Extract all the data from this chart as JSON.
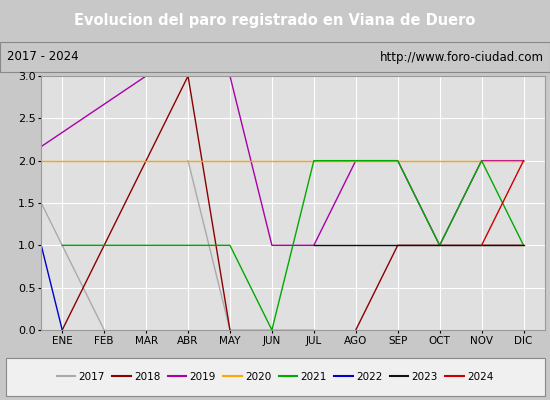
{
  "title": "Evolucion del paro registrado en Viana de Duero",
  "subtitle_left": "2017 - 2024",
  "subtitle_right": "http://www.foro-ciudad.com",
  "xlabel_months": [
    "ENE",
    "FEB",
    "MAR",
    "ABR",
    "MAY",
    "JUN",
    "JUL",
    "AGO",
    "SEP",
    "OCT",
    "NOV",
    "DIC"
  ],
  "ylim": [
    0.0,
    3.0
  ],
  "yticks": [
    0.0,
    0.5,
    1.0,
    1.5,
    2.0,
    2.5,
    3.0
  ],
  "series": {
    "2017": {
      "color": "#aaaaaa",
      "segments": [
        [
          [
            0,
            1,
            2
          ],
          [
            2,
            1,
            0
          ]
        ],
        [
          [
            4,
            5
          ],
          [
            2,
            0
          ]
        ]
      ]
    },
    "2018": {
      "color": "#8b0000",
      "segments": [
        [
          [
            1,
            3,
            4,
            5
          ],
          [
            0,
            2,
            3,
            0
          ]
        ],
        [
          [
            8,
            9,
            10,
            11,
            12
          ],
          [
            0,
            1,
            1,
            1,
            1
          ]
        ]
      ]
    },
    "2019": {
      "color": "#aa00aa",
      "segments": [
        [
          [
            0,
            3,
            4,
            5,
            6,
            7,
            8,
            9,
            10,
            11,
            12
          ],
          [
            2,
            3,
            3,
            3,
            1,
            1,
            2,
            2,
            1,
            2,
            2
          ]
        ]
      ]
    },
    "2020": {
      "color": "#ffa500",
      "segments": [
        [
          [
            0,
            12
          ],
          [
            2,
            2
          ]
        ]
      ]
    },
    "2021": {
      "color": "#00aa00",
      "segments": [
        [
          [
            1,
            2,
            3,
            4,
            5,
            6,
            7,
            8,
            9,
            10,
            11,
            12
          ],
          [
            1,
            1,
            1,
            1,
            1,
            0,
            2,
            2,
            2,
            1,
            2,
            1
          ]
        ]
      ]
    },
    "2022": {
      "color": "#0000cc",
      "segments": [
        [
          [
            0,
            1
          ],
          [
            2,
            0
          ]
        ]
      ]
    },
    "2023": {
      "color": "#111111",
      "segments": [
        [
          [
            7,
            8,
            9,
            10,
            11,
            12
          ],
          [
            1,
            1,
            1,
            1,
            1,
            1
          ]
        ]
      ]
    },
    "2024": {
      "color": "#cc0000",
      "segments": [
        [
          [
            5,
            7
          ],
          [
            0,
            0
          ]
        ],
        [
          [
            11,
            12
          ],
          [
            1,
            2
          ]
        ]
      ]
    }
  },
  "title_bg_color": "#4a7db5",
  "title_text_color": "#ffffff",
  "subtitle_bg_color": "#d8d8d8",
  "plot_bg_color": "#e0e0e0",
  "grid_color": "#ffffff",
  "outer_bg_color": "#c8c8c8",
  "legend_years": [
    "2017",
    "2018",
    "2019",
    "2020",
    "2021",
    "2022",
    "2023",
    "2024"
  ],
  "legend_colors": [
    "#aaaaaa",
    "#8b0000",
    "#aa00aa",
    "#ffa500",
    "#00aa00",
    "#0000cc",
    "#111111",
    "#cc0000"
  ]
}
